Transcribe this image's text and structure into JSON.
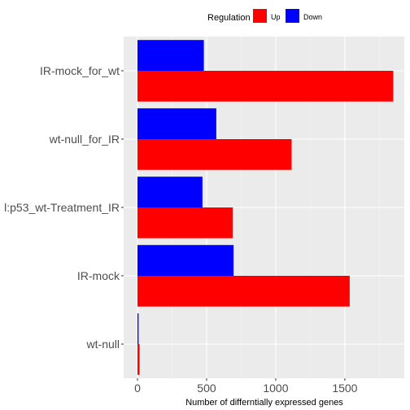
{
  "chart_data": {
    "type": "bar",
    "orientation": "horizontal",
    "categories": [
      "IR-mock_for_wt",
      "wt-null_for_IR",
      "l:p53_wt-Treatment_IR",
      "IR-mock",
      "wt-null"
    ],
    "series": [
      {
        "name": "Up",
        "color": "#ff0000",
        "values": [
          1850,
          1115,
          690,
          1535,
          15
        ]
      },
      {
        "name": "Down",
        "color": "#0000ff",
        "values": [
          480,
          570,
          470,
          695,
          8
        ]
      }
    ],
    "xlabel": "Number of differntially expressed genes",
    "ylabel": "",
    "xlim": [
      -100,
      1930
    ],
    "xticks": [
      0,
      500,
      1000,
      1500
    ],
    "grid": true,
    "legend": {
      "title": "Regulation",
      "position": "top"
    }
  }
}
